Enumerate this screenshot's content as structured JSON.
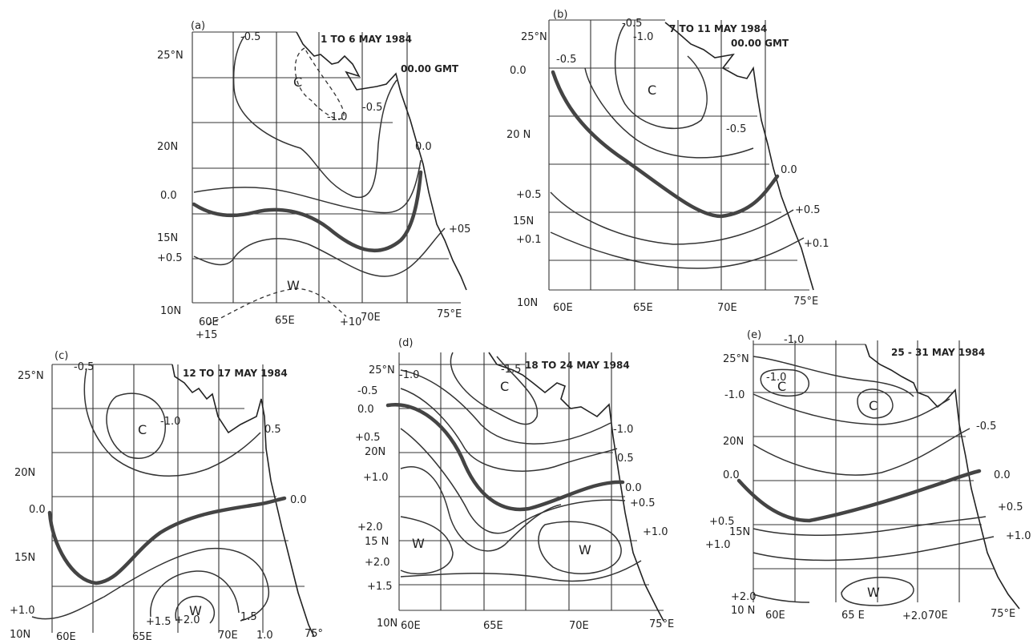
{
  "panels": [
    {
      "id": "a",
      "tag": "(a)",
      "date": "1 TO 6 MAY 1984",
      "time": "00.00 GMT",
      "lat_labels": [
        "25°N",
        "20N",
        "15N",
        "10N"
      ],
      "lon_labels": [
        "60E",
        "65E",
        "70E",
        "75°E"
      ],
      "contour_labels": [
        "-0.5",
        "-1.0",
        "-0.5",
        "0.0",
        "0.0",
        "+0.5",
        "+05",
        "+15",
        "+10"
      ],
      "markers": [
        "C",
        "W"
      ]
    },
    {
      "id": "b",
      "tag": "(b)",
      "date": "7 TO 11 MAY 1984",
      "time": "00.00 GMT",
      "lat_labels": [
        "25°N",
        "20 N",
        "15N",
        "10N"
      ],
      "lon_labels": [
        "60E",
        "65E",
        "70E",
        "75°E"
      ],
      "contour_labels": [
        "-0.5",
        "-1.0",
        "-0.5",
        "0.0",
        "-0.5",
        "0.0",
        "+0.5",
        "+0.1",
        "+0.5",
        "+0.1"
      ],
      "markers": [
        "C"
      ]
    },
    {
      "id": "c",
      "tag": "(c)",
      "date": "12 TO 17 MAY 1984",
      "lat_labels": [
        "25°N",
        "20N",
        "15N",
        "10N"
      ],
      "lon_labels": [
        "60E",
        "65E",
        "70E",
        "75°"
      ],
      "contour_labels": [
        "-0.5",
        "-1.0",
        "0.5",
        "0.0",
        "0.0",
        "+1.0",
        "+1.5",
        "+2.0",
        "1.5",
        "1.0"
      ],
      "markers": [
        "C",
        "W"
      ]
    },
    {
      "id": "d",
      "tag": "(d)",
      "date": "18 TO 24 MAY 1984",
      "lat_labels": [
        "25°N",
        "20N",
        "15 N",
        "10N"
      ],
      "lon_labels": [
        "60E",
        "65E",
        "70E",
        "75°E"
      ],
      "contour_labels": [
        "-1.0",
        "-1.5",
        "-0.5",
        "0.0",
        "+0.5",
        "+1.0",
        "+2.0",
        "+2.0",
        "+1.5",
        "-1.0",
        "0.5",
        "0.0",
        "+0.5",
        "+1.0"
      ],
      "markers": [
        "C",
        "W",
        "W"
      ]
    },
    {
      "id": "e",
      "tag": "(e)",
      "date": "25 - 31 MAY 1984",
      "lat_labels": [
        "25°N",
        "20N",
        "15N",
        "10 N"
      ],
      "lon_labels": [
        "60E",
        "65 E",
        "70E",
        "75°E"
      ],
      "contour_labels": [
        "-1.0",
        "-1.0",
        "-1.0",
        "-0.5",
        "0.0",
        "0.0",
        "+0.5",
        "+1.0",
        "+0.5",
        "+1.0",
        "+2.0",
        "+2.0"
      ],
      "markers": [
        "C",
        "C",
        "W"
      ]
    }
  ]
}
